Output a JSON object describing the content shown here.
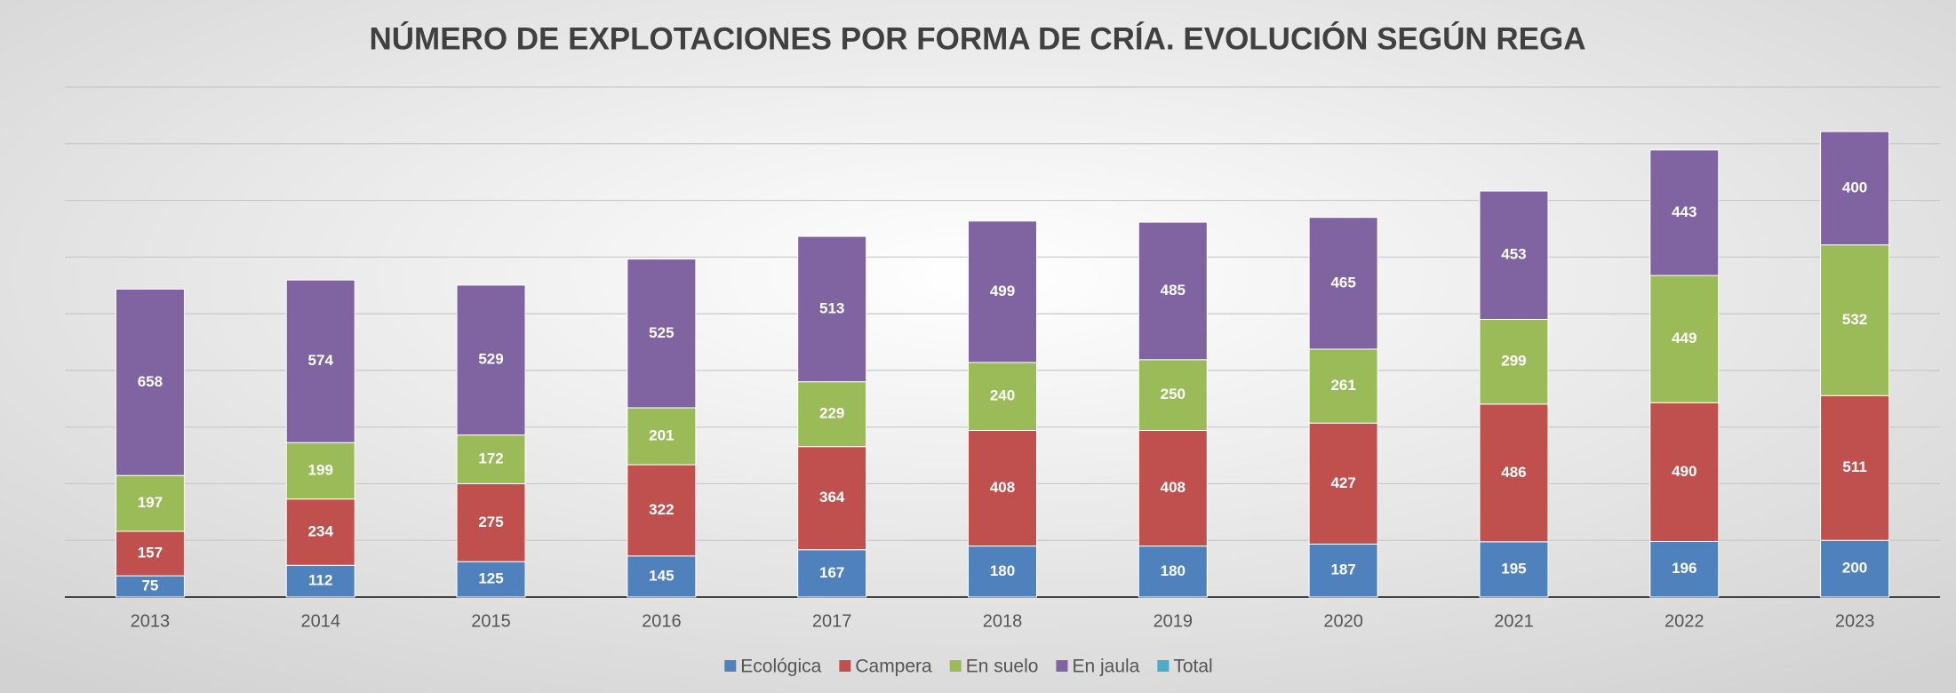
{
  "chart_data": {
    "type": "stacked_bar",
    "title": "NÚMERO DE EXPLOTACIONES POR FORMA DE CRÍA. EVOLUCIÓN SEGÚN REGA",
    "categories": [
      "2013",
      "2014",
      "2015",
      "2016",
      "2017",
      "2018",
      "2019",
      "2020",
      "2021",
      "2022",
      "2023"
    ],
    "series": [
      {
        "name": "Ecológica",
        "color": "#4f81bd",
        "values": [
          75,
          112,
          125,
          145,
          167,
          180,
          180,
          187,
          195,
          196,
          200
        ]
      },
      {
        "name": "Campera",
        "color": "#c0504d",
        "values": [
          157,
          234,
          275,
          322,
          364,
          408,
          408,
          427,
          486,
          490,
          511
        ]
      },
      {
        "name": "En suelo",
        "color": "#9bbb59",
        "values": [
          197,
          199,
          172,
          201,
          229,
          240,
          250,
          261,
          299,
          449,
          532
        ]
      },
      {
        "name": "En jaula",
        "color": "#8064a2",
        "values": [
          658,
          574,
          529,
          525,
          513,
          499,
          485,
          465,
          453,
          443,
          400
        ]
      },
      {
        "name": "Total",
        "color": "#4bacc6",
        "values": [
          null,
          null,
          null,
          null,
          null,
          null,
          null,
          null,
          null,
          null,
          null
        ]
      }
    ],
    "ylim": [
      0,
      1800
    ],
    "yticks": [
      0,
      200,
      400,
      600,
      800,
      1000,
      1200,
      1400,
      1600,
      1800
    ],
    "grid": true
  }
}
